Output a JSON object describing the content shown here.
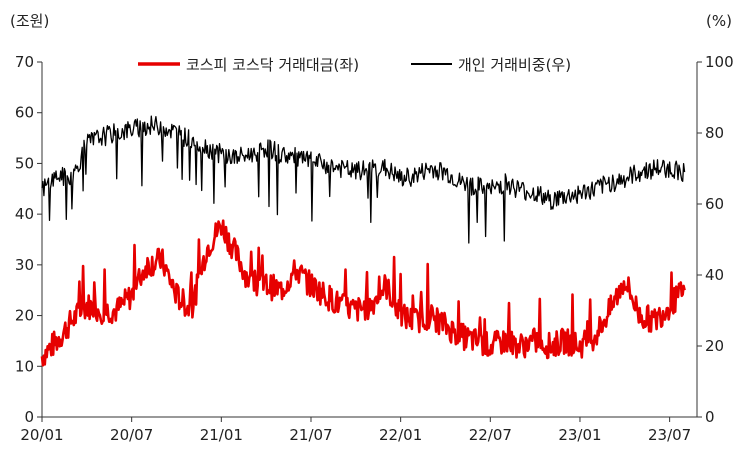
{
  "chart_data": {
    "type": "line",
    "left_unit": "(조원)",
    "right_unit": "(%)",
    "x_ticks": [
      "20/01",
      "20/07",
      "21/01",
      "21/07",
      "22/01",
      "22/07",
      "23/01",
      "23/07"
    ],
    "y_left_ticks": [
      0,
      10,
      20,
      30,
      40,
      50,
      60,
      70
    ],
    "y_right_ticks": [
      0,
      20,
      40,
      60,
      80,
      100
    ],
    "ylim_left": [
      0,
      70
    ],
    "ylim_right": [
      0,
      100
    ],
    "xlim": [
      "2020-01",
      "2023-08"
    ],
    "grid": false,
    "legend_position": "top",
    "series": [
      {
        "name": "코스피 코스닥 거래대금(좌)",
        "axis": "left",
        "color": "#e60000",
        "x": [
          "2020-01",
          "2020-02",
          "2020-03",
          "2020-04",
          "2020-05",
          "2020-06",
          "2020-07",
          "2020-08",
          "2020-09",
          "2020-10",
          "2020-11",
          "2020-12",
          "2021-01",
          "2021-02",
          "2021-03",
          "2021-04",
          "2021-05",
          "2021-06",
          "2021-07",
          "2021-08",
          "2021-09",
          "2021-10",
          "2021-11",
          "2021-12",
          "2022-01",
          "2022-02",
          "2022-03",
          "2022-04",
          "2022-05",
          "2022-06",
          "2022-07",
          "2022-08",
          "2022-09",
          "2022-10",
          "2022-11",
          "2022-12",
          "2023-01",
          "2023-02",
          "2023-03",
          "2023-04",
          "2023-05",
          "2023-06",
          "2023-07",
          "2023-08"
        ],
        "values": [
          12,
          15,
          19,
          22,
          21,
          21,
          24,
          30,
          31,
          24,
          21,
          33,
          38,
          32,
          26,
          26,
          25,
          29,
          26,
          24,
          22,
          21,
          22,
          26,
          20,
          19,
          20,
          18,
          16,
          15,
          14,
          15,
          14,
          15,
          14,
          15,
          14,
          16,
          21,
          27,
          20,
          19,
          22,
          25
        ]
      },
      {
        "name": "개인 거래비중(우)",
        "axis": "right",
        "color": "#000000",
        "x": [
          "2020-01",
          "2020-02",
          "2020-03",
          "2020-04",
          "2020-05",
          "2020-06",
          "2020-07",
          "2020-08",
          "2020-09",
          "2020-10",
          "2020-11",
          "2020-12",
          "2021-01",
          "2021-02",
          "2021-03",
          "2021-04",
          "2021-05",
          "2021-06",
          "2021-07",
          "2021-08",
          "2021-09",
          "2021-10",
          "2021-11",
          "2021-12",
          "2022-01",
          "2022-02",
          "2022-03",
          "2022-04",
          "2022-05",
          "2022-06",
          "2022-07",
          "2022-08",
          "2022-09",
          "2022-10",
          "2022-11",
          "2022-12",
          "2023-01",
          "2023-02",
          "2023-03",
          "2023-04",
          "2023-05",
          "2023-06",
          "2023-07",
          "2023-08"
        ],
        "values": [
          64,
          68,
          67,
          77,
          79,
          80,
          81,
          82,
          82,
          80,
          78,
          76,
          74,
          73,
          74,
          76,
          74,
          73,
          72,
          71,
          70,
          69,
          70,
          70,
          67,
          68,
          70,
          69,
          66,
          65,
          64,
          66,
          64,
          63,
          61,
          62,
          63,
          64,
          66,
          67,
          69,
          70,
          70,
          69
        ]
      }
    ]
  }
}
